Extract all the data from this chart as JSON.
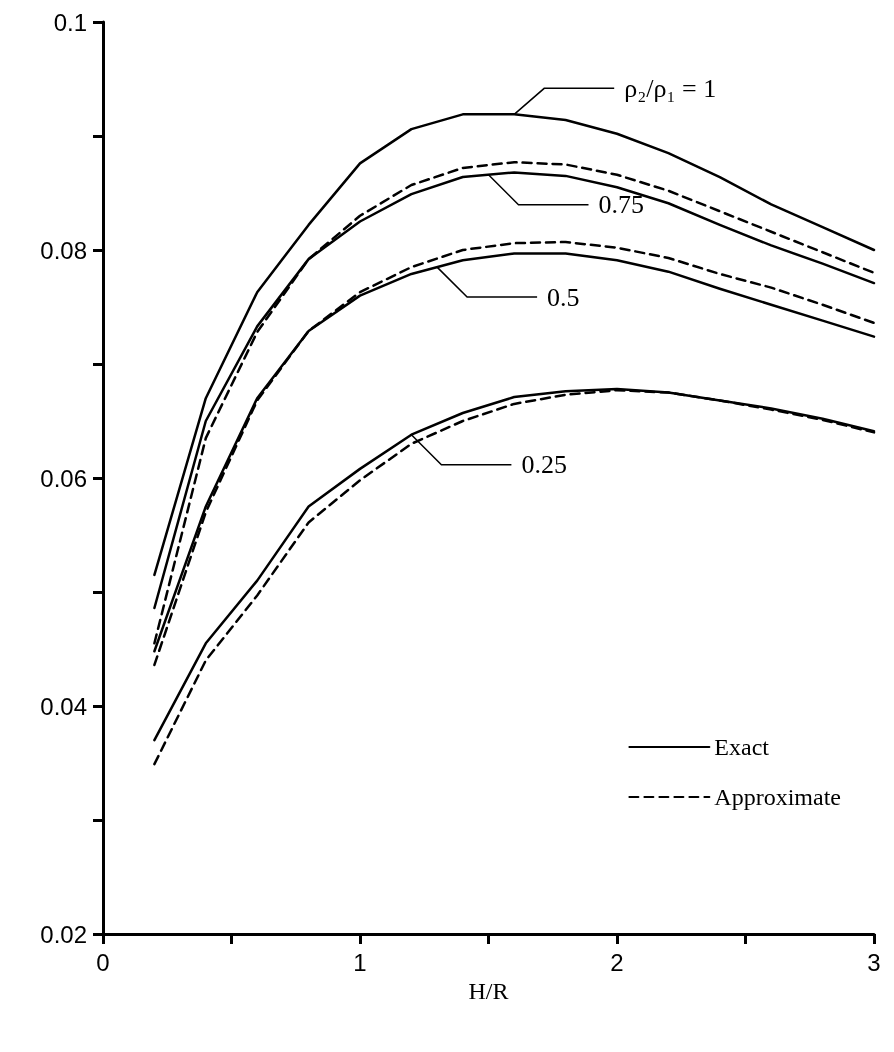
{
  "chart_data": {
    "type": "line",
    "xlabel": "H/R",
    "x": [
      0.2,
      0.4,
      0.6,
      0.8,
      1.0,
      1.2,
      1.4,
      1.6,
      1.8,
      2.0,
      2.2,
      2.4,
      2.6,
      2.8,
      3.0
    ],
    "series": [
      {
        "name": "Exact",
        "color": "#000000",
        "line_style": "solid",
        "values": [
          0.0515,
          0.067,
          0.0763,
          0.0822,
          0.0876,
          0.0906,
          0.0919,
          0.0919,
          0.0914,
          0.0902,
          0.0885,
          0.0864,
          0.084,
          0.082,
          0.08
        ]
      },
      {
        "name": "Approximate",
        "color": "#000000",
        "line_style": "dashed",
        "values": [
          0.0455,
          0.0635,
          0.0728,
          0.0792,
          0.083,
          0.0857,
          0.0872,
          0.0877,
          0.0875,
          0.0866,
          0.0852,
          0.0834,
          0.0816,
          0.0798,
          0.078
        ]
      },
      {
        "color": "#000000",
        "line_style": "solid",
        "values": [
          0.0486,
          0.065,
          0.0733,
          0.0792,
          0.0825,
          0.0849,
          0.0864,
          0.0868,
          0.0865,
          0.0855,
          0.0841,
          0.0822,
          0.0804,
          0.0788,
          0.0771
        ]
      },
      {
        "color": "#000000",
        "line_style": "dashed",
        "values": [
          0.0436,
          0.057,
          0.0668,
          0.0729,
          0.0763,
          0.0785,
          0.08,
          0.0806,
          0.0807,
          0.0802,
          0.0793,
          0.0779,
          0.0767,
          0.0752,
          0.0736
        ]
      },
      {
        "color": "#000000",
        "line_style": "solid",
        "values": [
          0.0448,
          0.0575,
          0.067,
          0.0729,
          0.076,
          0.0779,
          0.0791,
          0.0797,
          0.0797,
          0.0791,
          0.0781,
          0.0766,
          0.0752,
          0.0738,
          0.0724
        ]
      },
      {
        "color": "#000000",
        "line_style": "dashed",
        "values": [
          0.0349,
          0.044,
          0.0497,
          0.0561,
          0.0598,
          0.063,
          0.065,
          0.0665,
          0.0673,
          0.0677,
          0.0675,
          0.0668,
          0.066,
          0.0651,
          0.064
        ]
      },
      {
        "color": "#000000",
        "line_style": "solid",
        "values": [
          0.037,
          0.0455,
          0.051,
          0.0575,
          0.0608,
          0.0638,
          0.0657,
          0.0671,
          0.0676,
          0.0678,
          0.0675,
          0.0668,
          0.0661,
          0.0652,
          0.0641
        ]
      }
    ],
    "annotations": [
      {
        "text": "ρ₂/ρ₁ = 1",
        "x": 1.6,
        "y": 0.0919
      },
      {
        "text": "0.75",
        "x": 1.5,
        "y": 0.0866
      },
      {
        "text": "0.5",
        "x": 1.3,
        "y": 0.0785
      },
      {
        "text": "0.25",
        "x": 1.2,
        "y": 0.0638
      }
    ],
    "xlim": [
      0,
      3
    ],
    "ylim": [
      0.02,
      0.1
    ],
    "xticks": [
      0,
      {
        "value": 0.5,
        "label": null
      },
      1,
      {
        "value": 1.5,
        "label": null
      },
      2,
      {
        "value": 2.5,
        "label": null
      },
      3
    ],
    "yticks": [
      0.02,
      {
        "value": 0.03,
        "label": null
      },
      0.04,
      {
        "value": 0.05,
        "label": null
      },
      0.06,
      {
        "value": 0.07,
        "label": null
      },
      0.08,
      {
        "value": 0.09,
        "label": null
      },
      0.1
    ],
    "grid": false,
    "legend": "bottom right",
    "marker": "none"
  }
}
